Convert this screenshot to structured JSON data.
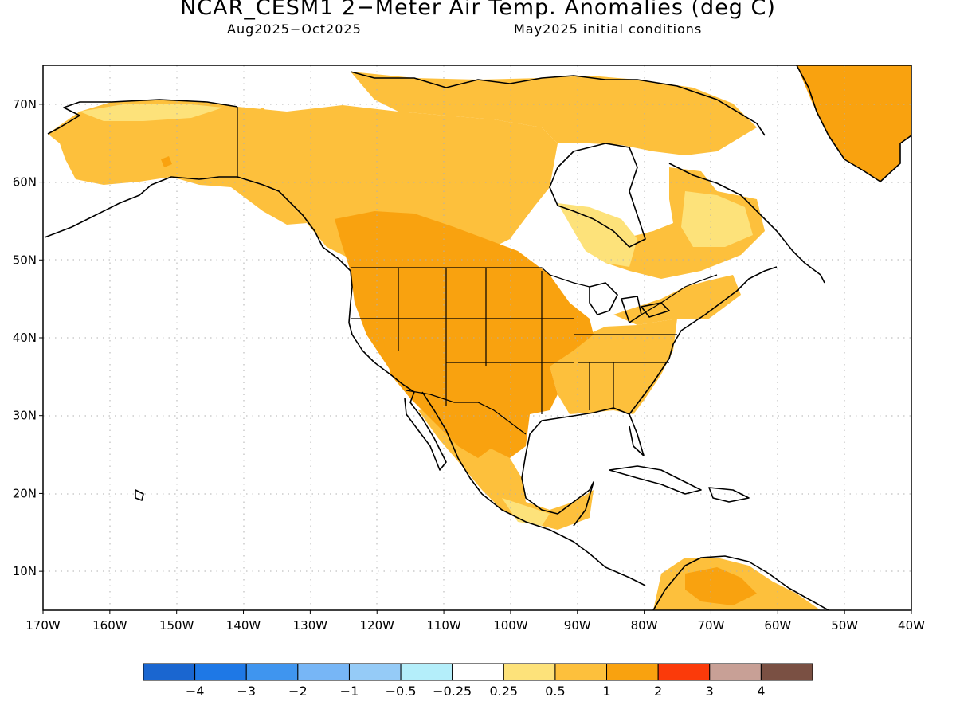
{
  "title": "NCAR_CESM1 2−Meter Air Temp. Anomalies (deg C)",
  "subtitle_left": "Aug2025−Oct2025",
  "subtitle_right": "May2025 initial conditions",
  "map": {
    "lat_labels": [
      {
        "value": 70,
        "text": "70N"
      },
      {
        "value": 60,
        "text": "60N"
      },
      {
        "value": 50,
        "text": "50N"
      },
      {
        "value": 40,
        "text": "40N"
      },
      {
        "value": 30,
        "text": "30N"
      },
      {
        "value": 20,
        "text": "20N"
      },
      {
        "value": 10,
        "text": "10N"
      }
    ],
    "lon_labels": [
      {
        "value": -170,
        "text": "170W"
      },
      {
        "value": -160,
        "text": "160W"
      },
      {
        "value": -150,
        "text": "150W"
      },
      {
        "value": -140,
        "text": "140W"
      },
      {
        "value": -130,
        "text": "130W"
      },
      {
        "value": -120,
        "text": "120W"
      },
      {
        "value": -110,
        "text": "110W"
      },
      {
        "value": -100,
        "text": "100W"
      },
      {
        "value": -90,
        "text": "90W"
      },
      {
        "value": -80,
        "text": "80W"
      },
      {
        "value": -70,
        "text": "70W"
      },
      {
        "value": -60,
        "text": "60W"
      },
      {
        "value": -50,
        "text": "50W"
      },
      {
        "value": -40,
        "text": "40W"
      }
    ],
    "lon_range": [
      -170,
      -40
    ],
    "lat_range": [
      5,
      75
    ],
    "grid": "dotted",
    "colors": {
      "land_outline": "#000000",
      "grid": "#aaaaaa",
      "anomaly_0_25_0_5": "#fde27a",
      "anomaly_0_5_1": "#fdc03c",
      "anomaly_1_2": "#f9a20f"
    }
  },
  "colorbar": {
    "boxes": [
      {
        "color": "#1a66d0"
      },
      {
        "color": "#1e78e6"
      },
      {
        "color": "#3f95ef"
      },
      {
        "color": "#77b6f6"
      },
      {
        "color": "#95cbf7"
      },
      {
        "color": "#b4eefa"
      },
      {
        "color": "#ffffff"
      },
      {
        "color": "#fde27a"
      },
      {
        "color": "#fdc03c"
      },
      {
        "color": "#f9a20f"
      },
      {
        "color": "#fb3a0a"
      },
      {
        "color": "#c8a096"
      },
      {
        "color": "#7a5043"
      }
    ],
    "labels": [
      "−4",
      "−3",
      "−2",
      "−1",
      "−0.5",
      "−0.25",
      "0.25",
      "0.5",
      "1",
      "2",
      "3",
      "4"
    ]
  }
}
